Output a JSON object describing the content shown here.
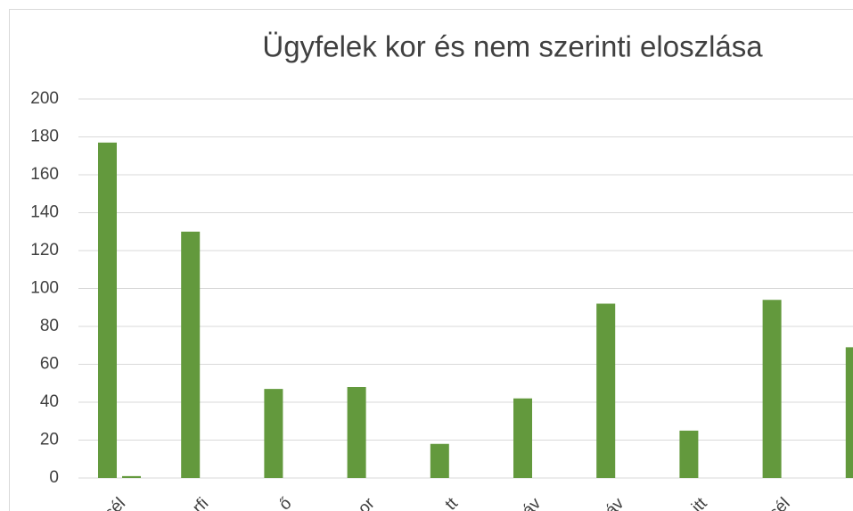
{
  "chart_data": {
    "type": "bar",
    "title": "Ügyfelek kor és nem szerinti eloszlása",
    "categories": [
      "sél",
      "rfi",
      "ő",
      "or",
      "tt",
      "áv",
      "áv",
      "itt",
      "sél",
      null
    ],
    "series": [
      {
        "color": "#63993d",
        "values": [
          177,
          130,
          47,
          48,
          18,
          42,
          92,
          25,
          94,
          69
        ]
      },
      {
        "color": "#63993d",
        "values": [
          1,
          0,
          0,
          0,
          0,
          0,
          0,
          0,
          0,
          0
        ]
      }
    ],
    "ylim": [
      0,
      200
    ],
    "yticks": [
      0,
      20,
      40,
      60,
      80,
      100,
      120,
      140,
      160,
      180,
      200
    ],
    "grid": true
  }
}
